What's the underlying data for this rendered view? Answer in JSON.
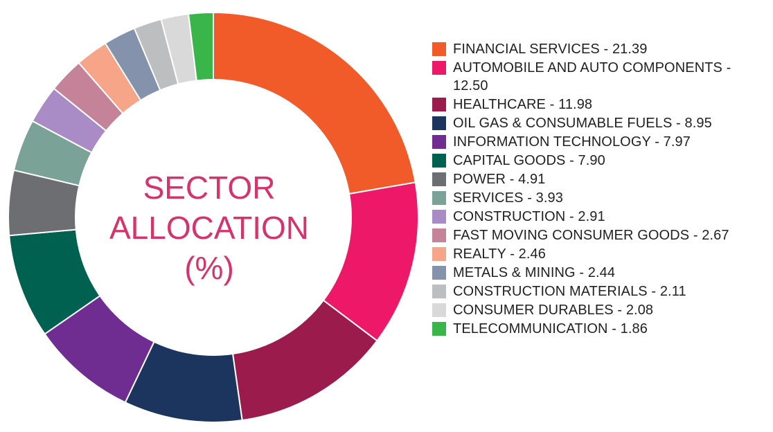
{
  "chart_data": {
    "type": "pie",
    "title_lines": [
      "SECTOR",
      "ALLOCATION",
      "(%)"
    ],
    "legend_position": "right",
    "separator": " - ",
    "slices": [
      {
        "label": "FINANCIAL SERVICES",
        "value": 21.39,
        "display": "21.39",
        "color": "#f15a29"
      },
      {
        "label": "AUTOMOBILE AND AUTO COMPONENTS",
        "value": 12.5,
        "display": "12.50",
        "color": "#ed1868"
      },
      {
        "label": "HEALTHCARE",
        "value": 11.98,
        "display": "11.98",
        "color": "#9b1b4d"
      },
      {
        "label": "OIL GAS & CONSUMABLE FUELS",
        "value": 8.95,
        "display": "8.95",
        "color": "#1c355e"
      },
      {
        "label": "INFORMATION TECHNOLOGY",
        "value": 7.97,
        "display": "7.97",
        "color": "#6f2c91"
      },
      {
        "label": "CAPITAL GOODS",
        "value": 7.9,
        "display": "7.90",
        "color": "#006150"
      },
      {
        "label": "POWER",
        "value": 4.91,
        "display": "4.91",
        "color": "#6d6e71"
      },
      {
        "label": "SERVICES",
        "value": 3.93,
        "display": "3.93",
        "color": "#7ba297"
      },
      {
        "label": "CONSTRUCTION",
        "value": 2.91,
        "display": "2.91",
        "color": "#a98cc5"
      },
      {
        "label": "FAST MOVING CONSUMER GOODS",
        "value": 2.67,
        "display": "2.67",
        "color": "#c48398"
      },
      {
        "label": "REALTY",
        "value": 2.46,
        "display": "2.46",
        "color": "#f6a588"
      },
      {
        "label": "METALS & MINING",
        "value": 2.44,
        "display": "2.44",
        "color": "#8592ab"
      },
      {
        "label": "CONSTRUCTION MATERIALS",
        "value": 2.11,
        "display": "2.11",
        "color": "#bcbec0"
      },
      {
        "label": "CONSUMER DURABLES",
        "value": 2.08,
        "display": "2.08",
        "color": "#d9d9da"
      },
      {
        "label": "TELECOMMUNICATION",
        "value": 1.86,
        "display": "1.86",
        "color": "#39b54a"
      }
    ]
  }
}
